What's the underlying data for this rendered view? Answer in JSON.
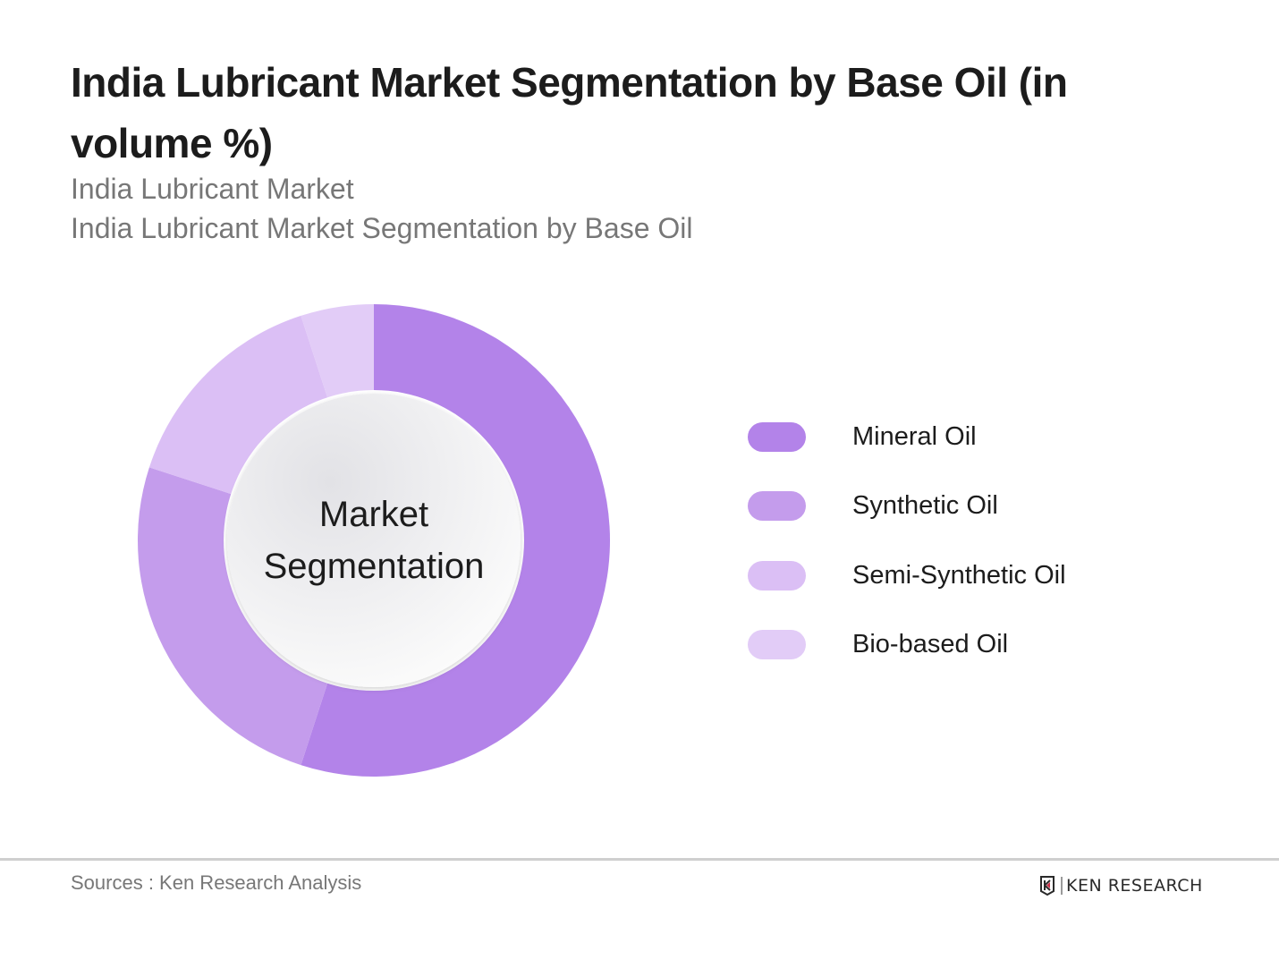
{
  "header": {
    "title": "India Lubricant Market Segmentation by Base Oil (in volume %)",
    "subtitle_1": "India Lubricant Market",
    "subtitle_2": "India Lubricant Market Segmentation by Base Oil"
  },
  "chart": {
    "center_label_line1": "Market",
    "center_label_line2": "Segmentation"
  },
  "legend": [
    {
      "label": "Mineral Oil",
      "color": "#b383e9"
    },
    {
      "label": "Synthetic Oil",
      "color": "#c49cec"
    },
    {
      "label": "Semi-Synthetic Oil",
      "color": "#dbbff5"
    },
    {
      "label": "Bio-based Oil",
      "color": "#e2ccf7"
    }
  ],
  "footer": {
    "source": "Sources : Ken Research Analysis",
    "logo_text": "KEN RESEARCH"
  },
  "chart_data": {
    "type": "pie",
    "variant": "donut",
    "title": "India Lubricant Market Segmentation by Base Oil (in volume %)",
    "subtitle": [
      "India Lubricant Market",
      "India Lubricant Market Segmentation by Base Oil"
    ],
    "center_text": "Market Segmentation",
    "categories": [
      "Mineral Oil",
      "Synthetic Oil",
      "Semi-Synthetic Oil",
      "Bio-based Oil"
    ],
    "values": [
      55,
      25,
      15,
      5
    ],
    "unit": "volume %",
    "colors": [
      "#b383e9",
      "#c49cec",
      "#dbbff5",
      "#e2ccf7"
    ],
    "start_angle": "12 o'clock, clockwise",
    "legend_position": "right",
    "data_labels": false,
    "source": "Sources : Ken Research Analysis"
  }
}
